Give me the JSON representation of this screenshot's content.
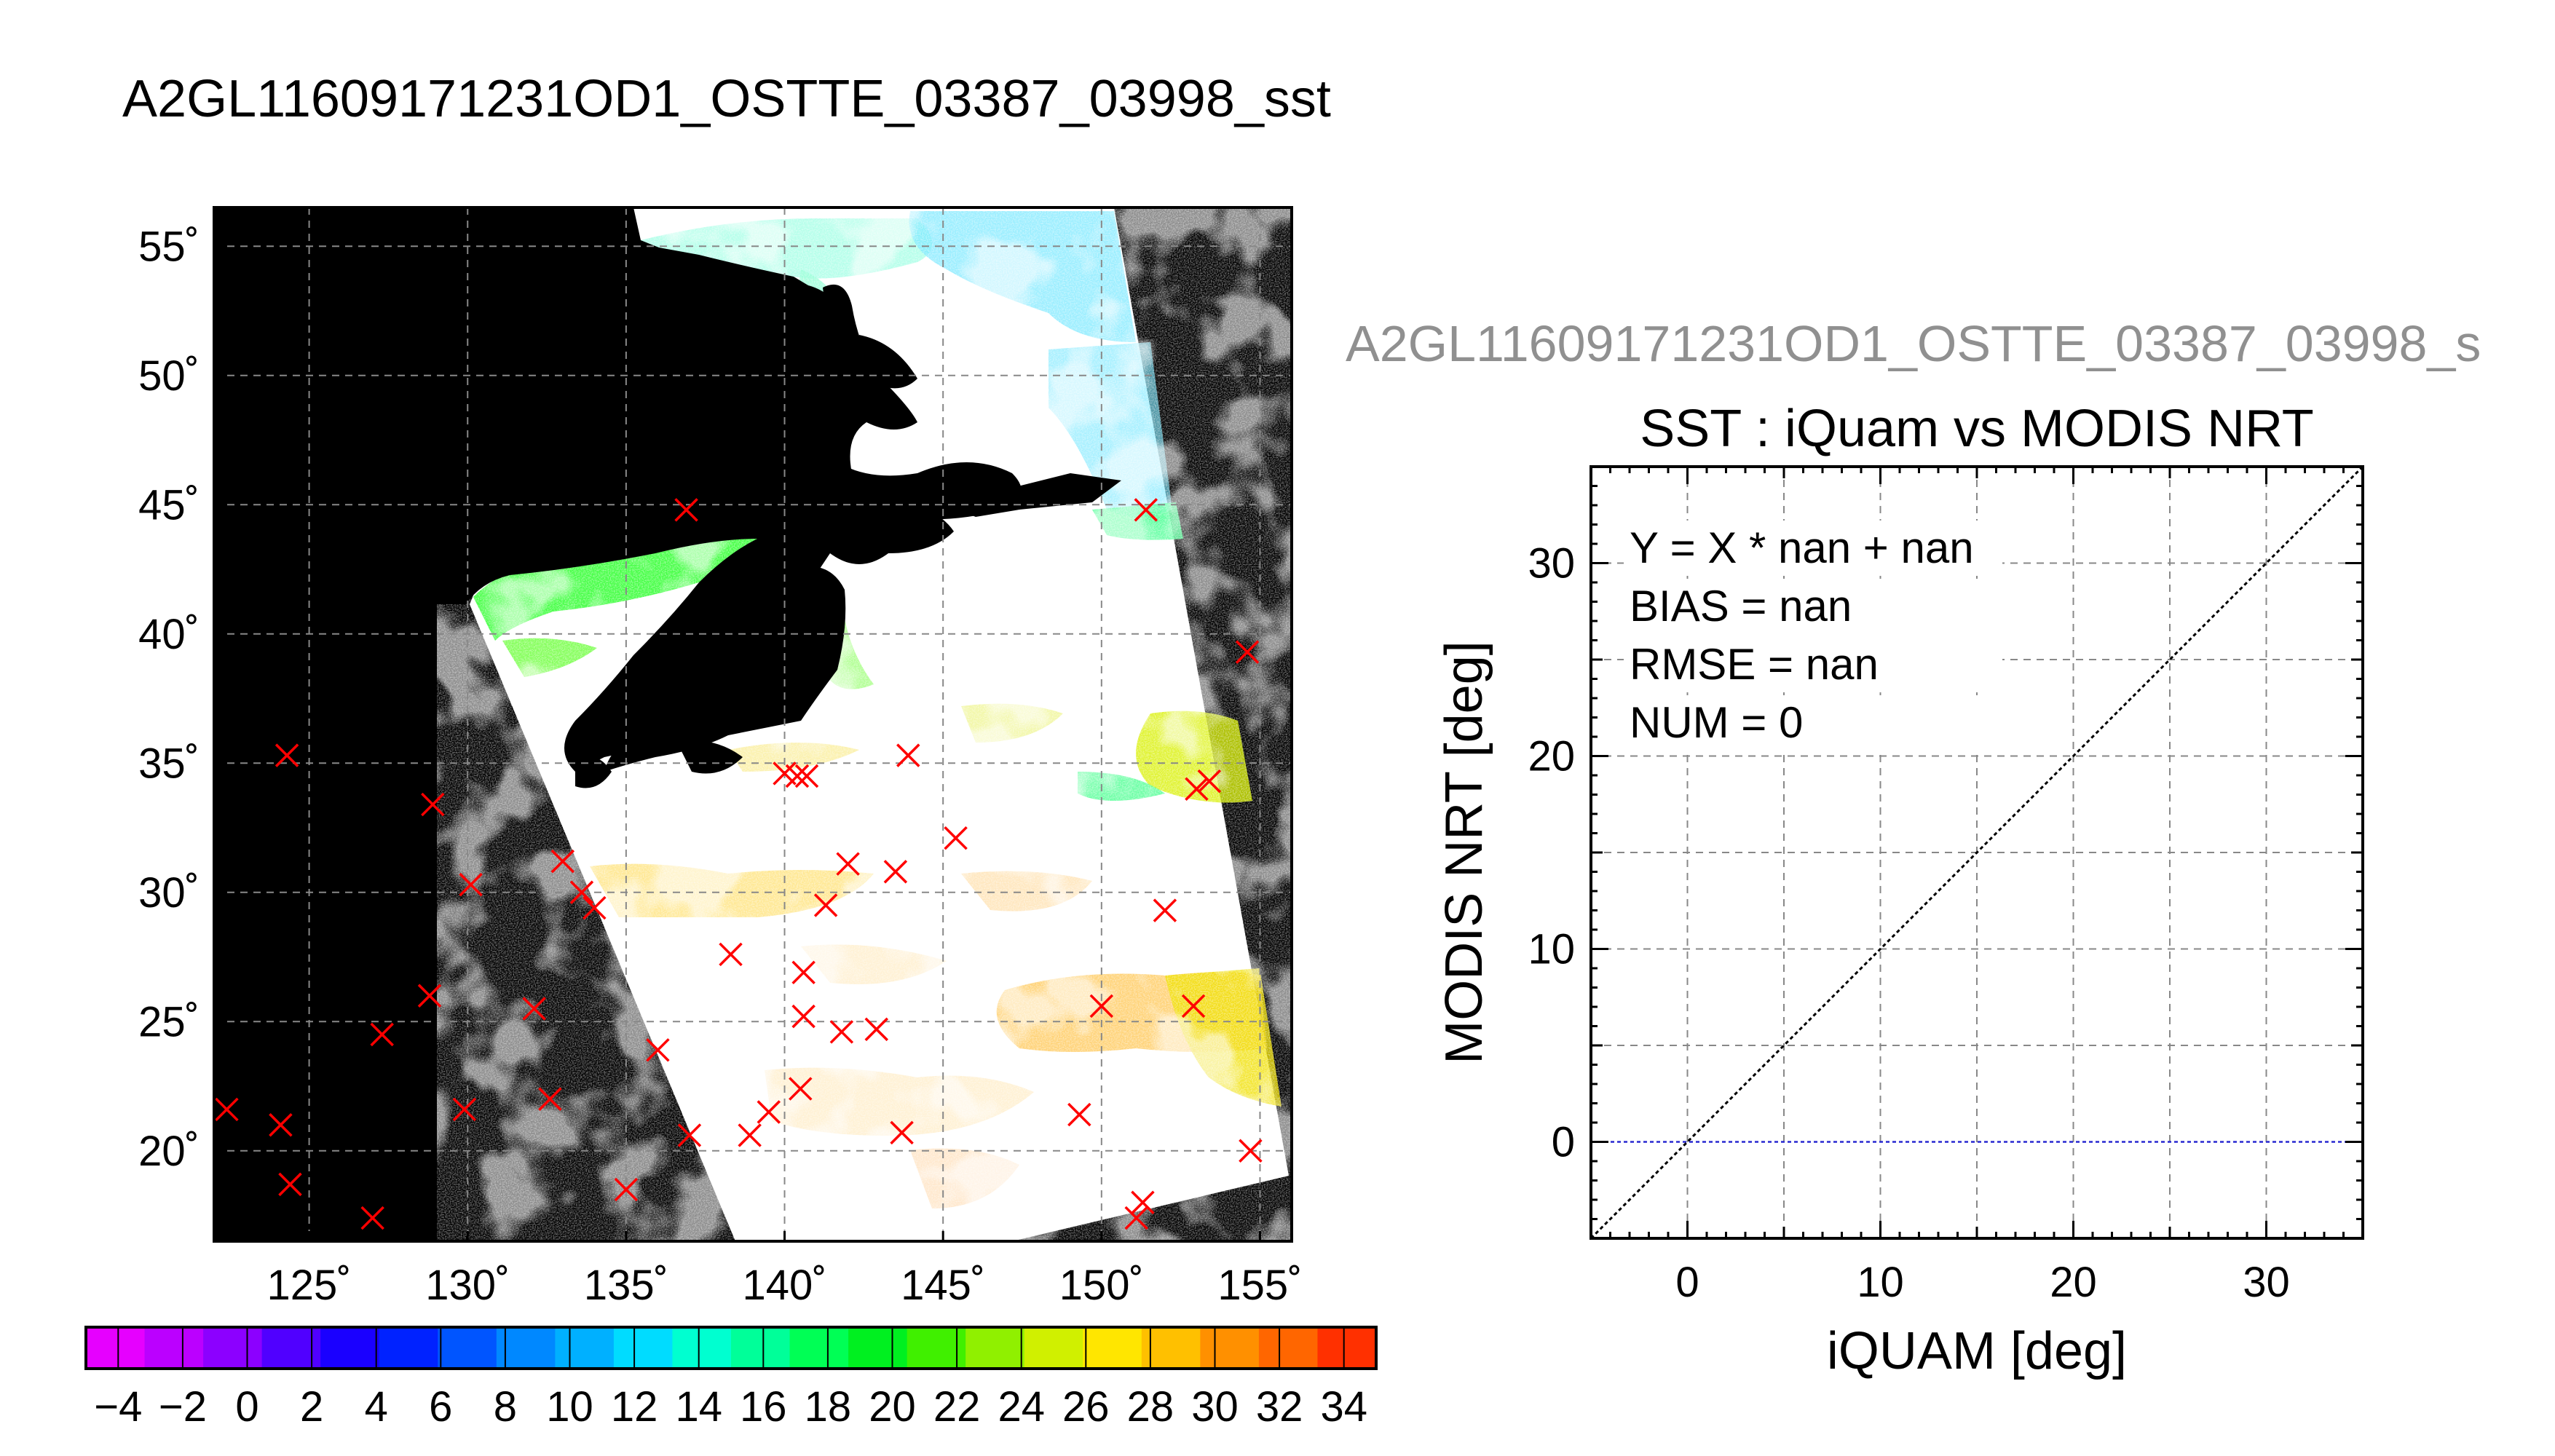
{
  "map_title": "A2GL11609171231OD1_OSTTE_03387_03998_sst",
  "scatter_header": "A2GL11609171231OD1_OSTTE_03387_03998_s",
  "chart_data": [
    {
      "type": "map",
      "title": "A2GL11609171231OD1_OSTTE_03387_03998_sst",
      "lon_range": [
        122,
        156
      ],
      "lat_range": [
        16.5,
        56.5
      ],
      "lon_ticks": [
        125,
        130,
        135,
        140,
        145,
        150,
        155
      ],
      "lat_ticks": [
        20,
        25,
        30,
        35,
        40,
        45,
        50,
        55
      ],
      "lon_tick_labels": [
        "125˚",
        "130˚",
        "135˚",
        "140˚",
        "145˚",
        "150˚",
        "155˚"
      ],
      "lat_tick_labels": [
        "20˚",
        "25˚",
        "30˚",
        "35˚",
        "40˚",
        "45˚",
        "50˚",
        "55˚"
      ],
      "grid": true,
      "markers": [
        [
          124.3,
          35.3
        ],
        [
          128.9,
          33.4
        ],
        [
          130.1,
          30.3
        ],
        [
          133.0,
          31.2
        ],
        [
          133.6,
          30.0
        ],
        [
          134.0,
          29.4
        ],
        [
          122.4,
          21.6
        ],
        [
          124.1,
          21.0
        ],
        [
          124.4,
          18.7
        ],
        [
          127.3,
          24.5
        ],
        [
          128.8,
          26.0
        ],
        [
          129.9,
          21.6
        ],
        [
          127.0,
          17.4
        ],
        [
          132.1,
          25.5
        ],
        [
          132.6,
          22.0
        ],
        [
          135.0,
          18.5
        ],
        [
          136.0,
          23.9
        ],
        [
          137.0,
          20.6
        ],
        [
          138.9,
          20.6
        ],
        [
          139.5,
          21.5
        ],
        [
          140.5,
          22.4
        ],
        [
          140.6,
          25.2
        ],
        [
          140.6,
          26.9
        ],
        [
          141.8,
          24.6
        ],
        [
          142.9,
          24.7
        ],
        [
          138.3,
          27.6
        ],
        [
          141.3,
          29.5
        ],
        [
          142.0,
          31.1
        ],
        [
          143.5,
          30.8
        ],
        [
          145.4,
          32.1
        ],
        [
          143.9,
          35.3
        ],
        [
          140.0,
          34.6
        ],
        [
          140.4,
          34.5
        ],
        [
          140.7,
          34.5
        ],
        [
          143.7,
          20.7
        ],
        [
          149.3,
          21.4
        ],
        [
          150.0,
          25.6
        ],
        [
          151.1,
          17.4
        ],
        [
          151.3,
          18.0
        ],
        [
          152.0,
          29.3
        ],
        [
          152.9,
          25.6
        ],
        [
          153.0,
          34.0
        ],
        [
          153.4,
          34.3
        ],
        [
          154.6,
          39.3
        ],
        [
          154.7,
          20.0
        ],
        [
          151.4,
          44.8
        ],
        [
          136.9,
          44.8
        ]
      ]
    },
    {
      "type": "colorbar",
      "range": [
        -5,
        35
      ],
      "step": 2,
      "tick_labels": [
        "−4",
        "−2",
        "0",
        "2",
        "4",
        "6",
        "8",
        "10",
        "12",
        "14",
        "16",
        "18",
        "20",
        "22",
        "24",
        "26",
        "28",
        "30",
        "32",
        "34"
      ],
      "colors": [
        "#e600ff",
        "#bb00ff",
        "#8c00ff",
        "#5000ff",
        "#1a00ff",
        "#0022ff",
        "#0055ff",
        "#0088ff",
        "#00b0ff",
        "#00dcff",
        "#00ffd0",
        "#00ff99",
        "#00ff55",
        "#00f020",
        "#40f000",
        "#90f000",
        "#d0f000",
        "#ffe600",
        "#ffc000",
        "#ff9000",
        "#ff6600",
        "#ff3000"
      ]
    },
    {
      "type": "scatter",
      "title": "SST : iQuam vs MODIS NRT",
      "xlabel": "iQUAM [deg]",
      "ylabel": "MODIS NRT [deg]",
      "xlim": [
        -5,
        35
      ],
      "ylim": [
        -5,
        35
      ],
      "xticks": [
        0,
        10,
        20,
        30
      ],
      "yticks": [
        0,
        10,
        20,
        30
      ],
      "grid": true,
      "stats": [
        "Y = X * nan + nan",
        "BIAS = nan",
        "RMSE = nan",
        "NUM = 0"
      ],
      "points": [],
      "reference_line": "y = x",
      "zero_line": 0
    }
  ]
}
